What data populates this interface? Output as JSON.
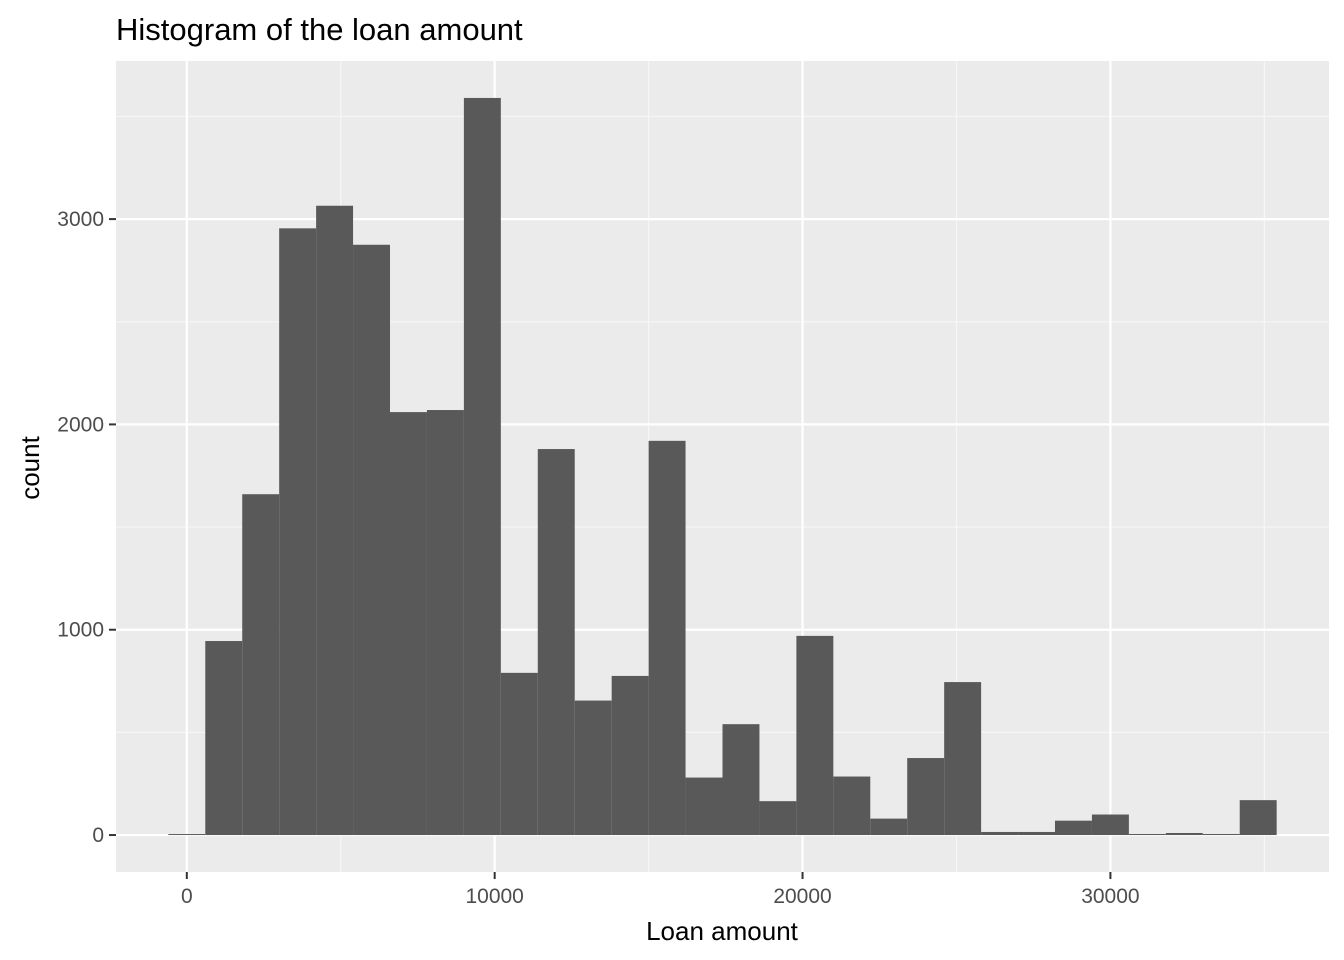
{
  "chart_data": {
    "type": "bar",
    "title": "Histogram of the loan amount",
    "xlabel": "Loan amount",
    "ylabel": "count",
    "bin_width": 1200,
    "bins": [
      {
        "x0": -600,
        "x1": 600,
        "count": 0
      },
      {
        "x0": 600,
        "x1": 1800,
        "count": 945
      },
      {
        "x0": 1800,
        "x1": 3000,
        "count": 1660
      },
      {
        "x0": 3000,
        "x1": 4200,
        "count": 2955
      },
      {
        "x0": 4200,
        "x1": 5400,
        "count": 3065
      },
      {
        "x0": 5400,
        "x1": 6600,
        "count": 2875
      },
      {
        "x0": 6600,
        "x1": 7800,
        "count": 2060
      },
      {
        "x0": 7800,
        "x1": 9000,
        "count": 2070
      },
      {
        "x0": 9000,
        "x1": 10200,
        "count": 3590
      },
      {
        "x0": 10200,
        "x1": 11400,
        "count": 790
      },
      {
        "x0": 11400,
        "x1": 12600,
        "count": 1880
      },
      {
        "x0": 12600,
        "x1": 13800,
        "count": 655
      },
      {
        "x0": 13800,
        "x1": 15000,
        "count": 775
      },
      {
        "x0": 15000,
        "x1": 16200,
        "count": 1920
      },
      {
        "x0": 16200,
        "x1": 17400,
        "count": 280
      },
      {
        "x0": 17400,
        "x1": 18600,
        "count": 540
      },
      {
        "x0": 18600,
        "x1": 19800,
        "count": 165
      },
      {
        "x0": 19800,
        "x1": 21000,
        "count": 970
      },
      {
        "x0": 21000,
        "x1": 22200,
        "count": 285
      },
      {
        "x0": 22200,
        "x1": 23400,
        "count": 80
      },
      {
        "x0": 23400,
        "x1": 24600,
        "count": 375
      },
      {
        "x0": 24600,
        "x1": 25800,
        "count": 745
      },
      {
        "x0": 25800,
        "x1": 27000,
        "count": 15
      },
      {
        "x0": 27000,
        "x1": 28200,
        "count": 15
      },
      {
        "x0": 28200,
        "x1": 29400,
        "count": 70
      },
      {
        "x0": 29400,
        "x1": 30600,
        "count": 100
      },
      {
        "x0": 30600,
        "x1": 31800,
        "count": 5
      },
      {
        "x0": 31800,
        "x1": 33000,
        "count": 10
      },
      {
        "x0": 33000,
        "x1": 34200,
        "count": 5
      },
      {
        "x0": 34200,
        "x1": 35400,
        "count": 170
      }
    ],
    "xlim": [
      -2300,
      37100
    ],
    "ylim": [
      -180,
      3770
    ],
    "x_ticks": [
      0,
      10000,
      20000,
      30000
    ],
    "y_ticks": [
      0,
      1000,
      2000,
      3000
    ],
    "grid": true,
    "legend": "none",
    "colors": {
      "bar": "#595959",
      "panel": "#ebebeb",
      "grid_major": "#ffffff",
      "grid_minor": "#f6f6f6",
      "tick_text": "#4d4d4d",
      "tick_mark": "#333333"
    }
  }
}
